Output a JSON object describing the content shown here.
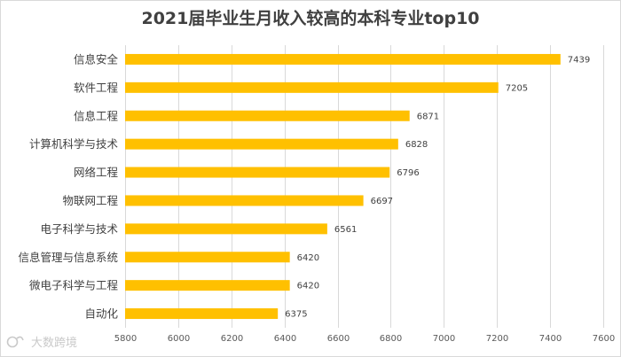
{
  "chart_data": {
    "type": "bar",
    "orientation": "horizontal",
    "title": "2021届毕业生月收入较高的本科专业top10",
    "categories": [
      "信息安全",
      "软件工程",
      "信息工程",
      "计算机科学与技术",
      "网络工程",
      "物联网工程",
      "电子科学与技术",
      "信息管理与信息系统",
      "微电子科学与工程",
      "自动化"
    ],
    "values": [
      7439,
      7205,
      6871,
      6828,
      6796,
      6697,
      6561,
      6420,
      6420,
      6375
    ],
    "xlim": [
      5800,
      7600
    ],
    "xticks": [
      5800,
      6000,
      6200,
      6400,
      6600,
      6800,
      7000,
      7200,
      7400,
      7600
    ],
    "xtick_labels": [
      "5800",
      "6000",
      "6200",
      "6400",
      "6600",
      "6800",
      "7000",
      "7200",
      "7400",
      "7600"
    ],
    "grid": true,
    "bar_color": "#FFC000",
    "xlabel": "",
    "ylabel": ""
  },
  "watermark": {
    "text": "大数跨境",
    "icon": "logo-icon"
  }
}
